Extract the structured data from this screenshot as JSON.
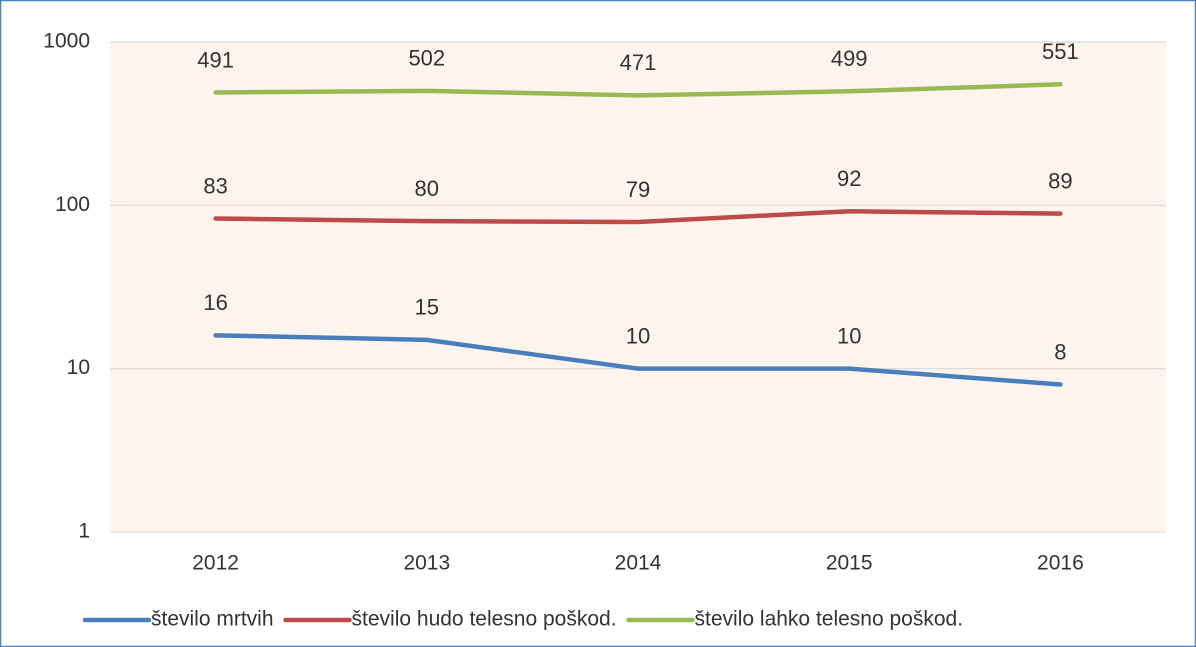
{
  "chart_data": {
    "type": "line",
    "categories": [
      "2012",
      "2013",
      "2014",
      "2015",
      "2016"
    ],
    "series": [
      {
        "name": "število mrtvih",
        "color": "#4a7ebb",
        "values": [
          16,
          15,
          10,
          10,
          8
        ]
      },
      {
        "name": "število hudo telesno poškod.",
        "color": "#be4b48",
        "values": [
          83,
          80,
          79,
          92,
          89
        ]
      },
      {
        "name": "število lahko telesno poškod.",
        "color": "#98b954",
        "values": [
          491,
          502,
          471,
          499,
          551
        ]
      }
    ],
    "ylim": [
      1,
      1000
    ],
    "yticks": [
      1,
      10,
      100,
      1000
    ],
    "log_scale": true,
    "grid": true,
    "legend": "bottom"
  }
}
